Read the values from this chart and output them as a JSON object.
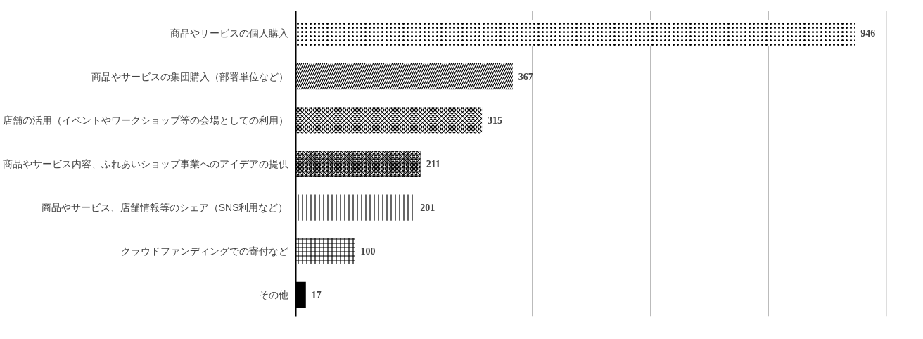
{
  "chart_data": {
    "type": "bar",
    "orientation": "horizontal",
    "categories": [
      "商品やサービスの個人購入",
      "商品やサービスの集団購入（部署単位など）",
      "店舗の活用（イベントやワークショップ等の会場としての利用）",
      "商品やサービス内容、ふれあいショップ事業へのアイデアの提供",
      "商品やサービス、店舗情報等のシェア（SNS利用など）",
      "クラウドファンディングでの寄付など",
      "その他"
    ],
    "values": [
      946,
      367,
      315,
      211,
      201,
      100,
      17
    ],
    "colors": [
      "#000000",
      "#000000",
      "#000000",
      "#000000",
      "#000000",
      "#000000",
      "#000000"
    ],
    "xlim": [
      0,
      1000
    ],
    "xticks": [
      {
        "value": 0,
        "label": null
      },
      {
        "value": 200,
        "label": null
      },
      {
        "value": 400,
        "label": null
      },
      {
        "value": 600,
        "label": null
      },
      {
        "value": 800,
        "label": null
      },
      {
        "value": 1000,
        "label": null
      }
    ],
    "grid": "x",
    "tick_labels": "y",
    "data_labels": true
  }
}
